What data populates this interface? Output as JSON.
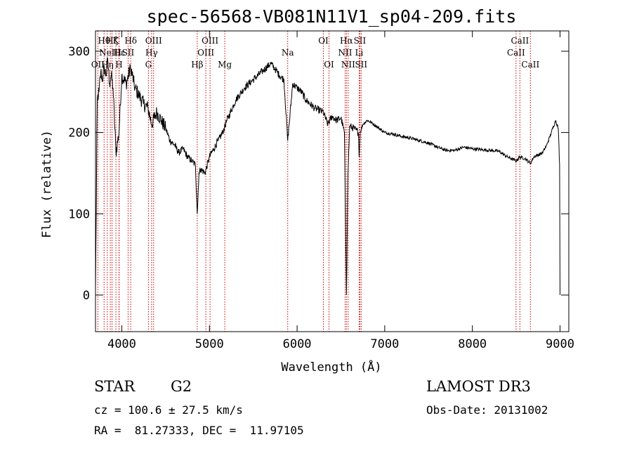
{
  "chart_data": {
    "type": "line",
    "title": "spec-56568-VB081N11V1_sp04-209.fits",
    "xlabel": "Wavelength (Å)",
    "ylabel": "Flux (relative)",
    "xlim": [
      3700,
      9100
    ],
    "ylim": [
      -45,
      325
    ],
    "xticks": [
      4000,
      5000,
      6000,
      7000,
      8000,
      9000
    ],
    "yticks": [
      0,
      100,
      200,
      300
    ],
    "grid": false,
    "line_color": "#000000",
    "marker_color": "#cc0000",
    "series": [
      {
        "x": [
          3700,
          3720,
          3740,
          3760,
          3780,
          3800,
          3820,
          3840,
          3860,
          3880,
          3900,
          3933,
          3968,
          4000,
          4050,
          4101,
          4150,
          4200,
          4250,
          4300,
          4340,
          4400,
          4450,
          4500,
          4550,
          4600,
          4650,
          4700,
          4750,
          4800,
          4840,
          4861,
          4880,
          4900,
          4950,
          5000,
          5050,
          5100,
          5150,
          5200,
          5300,
          5400,
          5500,
          5600,
          5700,
          5750,
          5800,
          5850,
          5893,
          5950,
          6000,
          6050,
          6100,
          6200,
          6300,
          6350,
          6400,
          6450,
          6500,
          6540,
          6563,
          6580,
          6600,
          6650,
          6700,
          6708,
          6720,
          6750,
          6800,
          6850,
          6900,
          7000,
          7100,
          7200,
          7300,
          7400,
          7500,
          7600,
          7700,
          7800,
          7900,
          8000,
          8100,
          8200,
          8300,
          8400,
          8500,
          8542,
          8600,
          8662,
          8700,
          8800,
          8850,
          8900,
          8950,
          8980,
          8995,
          9000
        ],
        "values": [
          5,
          240,
          250,
          275,
          265,
          280,
          270,
          290,
          260,
          270,
          255,
          175,
          200,
          270,
          260,
          280,
          255,
          245,
          235,
          230,
          210,
          225,
          215,
          205,
          190,
          185,
          175,
          180,
          170,
          165,
          160,
          100,
          150,
          155,
          150,
          170,
          180,
          190,
          200,
          215,
          240,
          255,
          265,
          275,
          285,
          278,
          270,
          265,
          190,
          260,
          255,
          250,
          240,
          230,
          225,
          210,
          220,
          215,
          218,
          200,
          0,
          150,
          208,
          205,
          200,
          170,
          200,
          210,
          215,
          212,
          208,
          200,
          198,
          195,
          193,
          190,
          187,
          182,
          178,
          178,
          182,
          180,
          179,
          178,
          177,
          170,
          165,
          170,
          168,
          162,
          170,
          175,
          185,
          200,
          215,
          205,
          160,
          0
        ]
      }
    ],
    "markers": [
      {
        "x": 3727,
        "label": "OII",
        "row": 3
      },
      {
        "x": 3798,
        "label": "Hθ",
        "row": 1
      },
      {
        "x": 3835,
        "label": "Hη",
        "row": 3
      },
      {
        "x": 3869,
        "label": "NeIII",
        "row": 2
      },
      {
        "x": 3889,
        "label": "Hζ",
        "row": 1
      },
      {
        "x": 3933,
        "label": "K",
        "row": 1
      },
      {
        "x": 3970,
        "label": "Hε",
        "row": 2
      },
      {
        "x": 3968,
        "label": "H",
        "row": 3
      },
      {
        "x": 4072,
        "label": "SII",
        "row": 2
      },
      {
        "x": 4102,
        "label": "Hδ",
        "row": 1
      },
      {
        "x": 4304,
        "label": "G",
        "row": 3
      },
      {
        "x": 4340,
        "label": "Hγ",
        "row": 2
      },
      {
        "x": 4363,
        "label": "OIII",
        "row": 1
      },
      {
        "x": 4861,
        "label": "Hβ",
        "row": 3
      },
      {
        "x": 4959,
        "label": "OIII",
        "row": 2
      },
      {
        "x": 5007,
        "label": "OIII",
        "row": 1
      },
      {
        "x": 5175,
        "label": "Mg",
        "row": 3
      },
      {
        "x": 5893,
        "label": "Na",
        "row": 2
      },
      {
        "x": 6300,
        "label": "OI",
        "row": 1
      },
      {
        "x": 6364,
        "label": "OI",
        "row": 3
      },
      {
        "x": 6548,
        "label": "NII",
        "row": 2
      },
      {
        "x": 6563,
        "label": "Hα",
        "row": 1
      },
      {
        "x": 6583,
        "label": "NII",
        "row": 3
      },
      {
        "x": 6708,
        "label": "Li",
        "row": 2
      },
      {
        "x": 6716,
        "label": "SII",
        "row": 1
      },
      {
        "x": 6731,
        "label": "SII",
        "row": 3
      },
      {
        "x": 8498,
        "label": "CaII",
        "row": 2
      },
      {
        "x": 8542,
        "label": "CaII",
        "row": 1
      },
      {
        "x": 8662,
        "label": "CaII",
        "row": 3
      }
    ]
  },
  "footer": {
    "object_class": "STAR",
    "subclass": "G2",
    "redshift": "cz = 100.6 ± 27.5 km/s",
    "coordinates": "RA =  81.27333, DEC =  11.97105",
    "survey": "LAMOST DR3",
    "obs_date": "Obs-Date: 20131002"
  }
}
